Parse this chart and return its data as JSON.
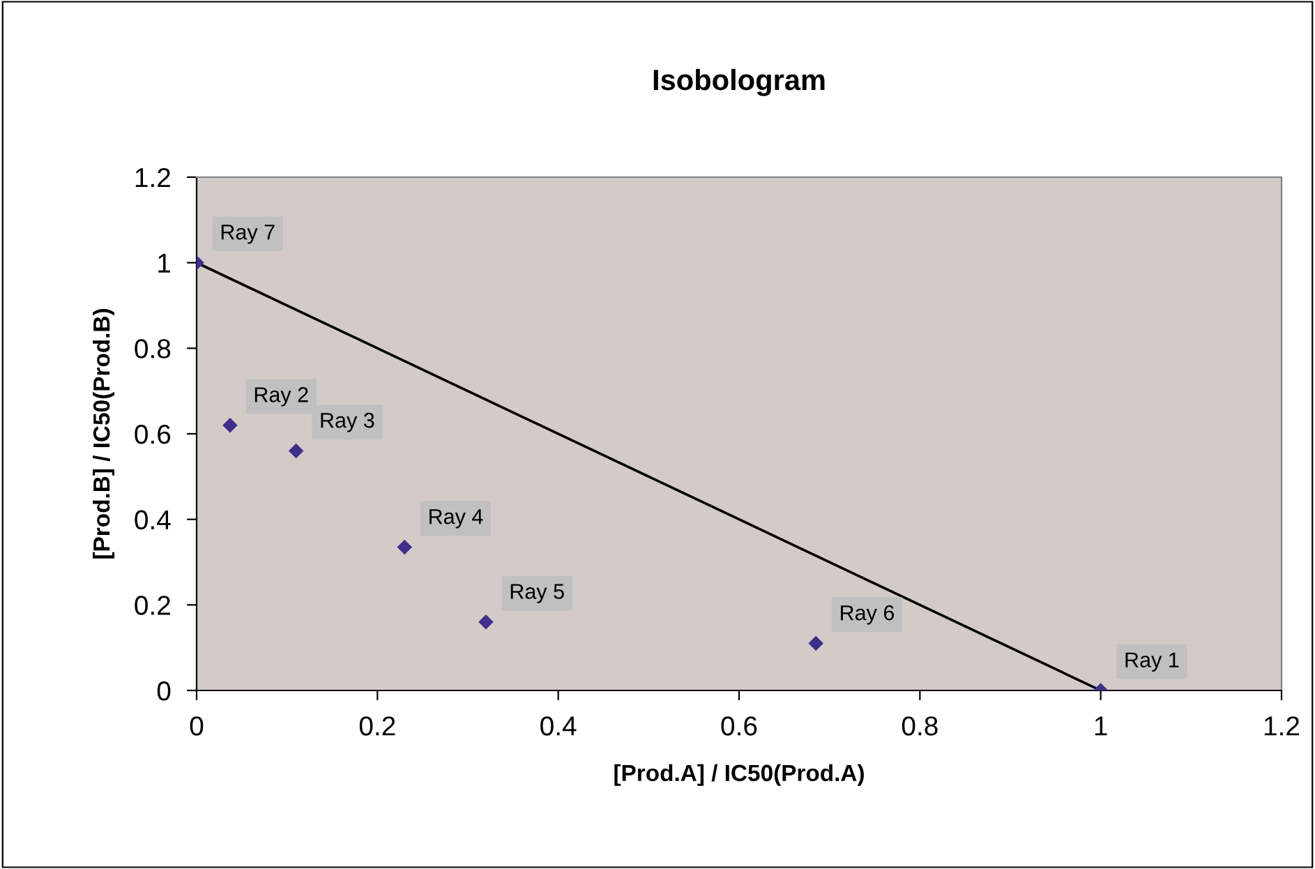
{
  "chart_data": {
    "type": "scatter",
    "title": "Isobologram",
    "xlabel": "[Prod.A] / IC50(Prod.A)",
    "ylabel": "[Prod.B] / IC50(Prod.B)",
    "xlim": [
      0,
      1.2
    ],
    "ylim": [
      0,
      1.2
    ],
    "xticks": [
      0,
      0.2,
      0.4,
      0.6,
      0.8,
      1,
      1.2
    ],
    "yticks": [
      0,
      0.2,
      0.4,
      0.6,
      0.8,
      1,
      1.2
    ],
    "grid": false,
    "legend": false,
    "marker": "diamond",
    "series": [
      {
        "color": "#3f2f8a",
        "x": [
          1,
          0.037,
          0.11,
          0.23,
          0.32,
          0.685,
          0
        ],
        "values": [
          0,
          0.62,
          0.56,
          0.335,
          0.16,
          0.11,
          1
        ]
      },
      {
        "type": "line",
        "color": "#000000",
        "x": [
          0,
          1
        ],
        "values": [
          1,
          0
        ],
        "marker": "none",
        "line_style": "solid"
      }
    ],
    "annotations": [
      {
        "text": "Ray 1",
        "x": 1,
        "y": 0
      },
      {
        "text": "Ray 2",
        "x": 0.037,
        "y": 0.62
      },
      {
        "text": "Ray 3",
        "x": 0.11,
        "y": 0.56
      },
      {
        "text": "Ray 4",
        "x": 0.23,
        "y": 0.335
      },
      {
        "text": "Ray 5",
        "x": 0.32,
        "y": 0.16
      },
      {
        "text": "Ray 6",
        "x": 0.685,
        "y": 0.11
      },
      {
        "text": "Ray 7",
        "x": 0,
        "y": 1
      }
    ]
  }
}
